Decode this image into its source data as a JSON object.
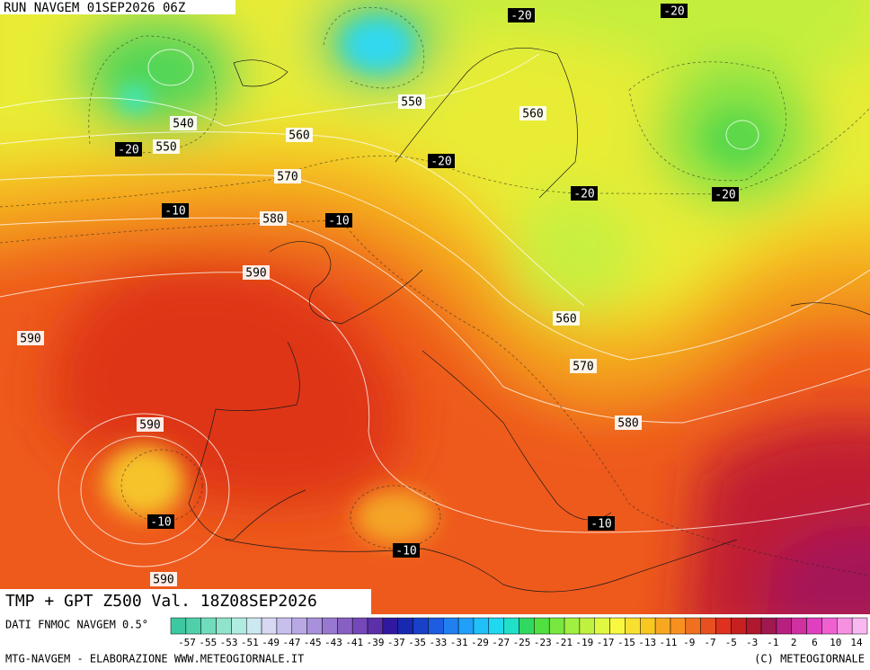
{
  "header": {
    "run": "RUN NAVGEM 01SEP2026 06Z"
  },
  "map": {
    "gpt_labels": [
      "540",
      "550",
      "550",
      "560",
      "560",
      "570",
      "580",
      "590",
      "590",
      "560",
      "570",
      "580",
      "590",
      "590"
    ],
    "tmp_labels": [
      "-20",
      "-20",
      "-20",
      "-20",
      "-20",
      "-20",
      "-10",
      "-10",
      "-10",
      "-10",
      "-10"
    ]
  },
  "footer": {
    "title": "TMP + GPT Z500 Val. 18Z08SEP2026",
    "source": "DATI FNMOC NAVGEM 0.5°",
    "credit": "MTG-NAVGEM - ELABORAZIONE WWW.METEOGIORNALE.IT",
    "copyright": "(C) METEOGIORNALE"
  },
  "scale": {
    "labels": [
      "-57",
      "-55",
      "-53",
      "-51",
      "-49",
      "-47",
      "-45",
      "-43",
      "-41",
      "-39",
      "-37",
      "-35",
      "-33",
      "-31",
      "-29",
      "-27",
      "-25",
      "-23",
      "-21",
      "-19",
      "-17",
      "-15",
      "-13",
      "-11",
      "-9",
      "-7",
      "-5",
      "-3",
      "-1",
      "2",
      "6",
      "10",
      "14"
    ],
    "colors": [
      "#3cc8a0",
      "#50d0aa",
      "#70dcbc",
      "#90e4cc",
      "#b0ece0",
      "#cce8f0",
      "#d8d8f4",
      "#c8c0ec",
      "#b8a8e4",
      "#a890dc",
      "#9878d0",
      "#8860c4",
      "#7448b8",
      "#5c30a8",
      "#3018a0",
      "#1828b0",
      "#1840c8",
      "#1e5ce0",
      "#2080f0",
      "#20a0f8",
      "#20c0f8",
      "#20d8f0",
      "#20e0c8",
      "#30d860",
      "#50e040",
      "#78e840",
      "#a0f040",
      "#c0f040",
      "#e0f840",
      "#f8f840",
      "#f8e030",
      "#f8c820",
      "#f8a820",
      "#f89020",
      "#f07020",
      "#e85020",
      "#e03020",
      "#c82020",
      "#b01830",
      "#a01850",
      "#b82080",
      "#d030a0",
      "#e040c0",
      "#f060d0",
      "#f890e0",
      "#f8b8f0"
    ]
  }
}
